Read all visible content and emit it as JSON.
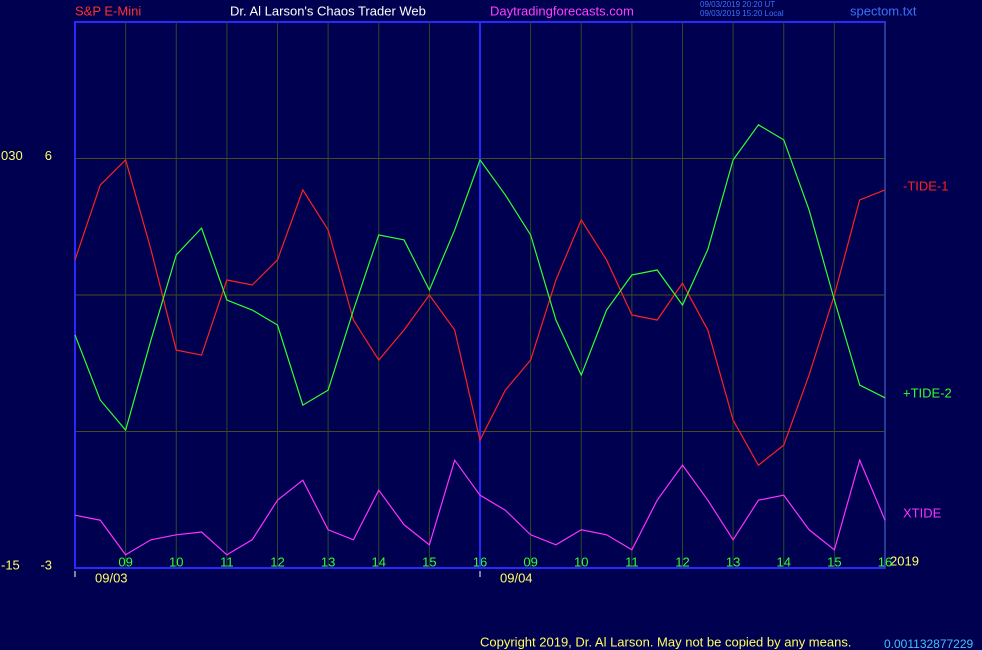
{
  "chart_data": {
    "type": "line",
    "header": [
      "S&P E-Mini",
      "Dr. Al Larson's Chaos Trader Web",
      "Daytradingforecasts.com"
    ],
    "timestamps": [
      "09/03/2019 20:20 UT",
      "09/03/2019 15:20 Local"
    ],
    "file_label": "spectom.txt",
    "year_label": "2019",
    "copyright": "Copyright 2019, Dr. Al Larson. May not be copied by any means.",
    "readout": "0.001132877229",
    "xlim": [
      0,
      16
    ],
    "xticks": [
      {
        "value": 1,
        "label": "09"
      },
      {
        "value": 2,
        "label": "10"
      },
      {
        "value": 3,
        "label": "11"
      },
      {
        "value": 4,
        "label": "12"
      },
      {
        "value": 5,
        "label": "13"
      },
      {
        "value": 6,
        "label": "14"
      },
      {
        "value": 7,
        "label": "15"
      },
      {
        "value": 8,
        "label": "16"
      },
      {
        "value": 9,
        "label": "09"
      },
      {
        "value": 10,
        "label": "10"
      },
      {
        "value": 11,
        "label": "11"
      },
      {
        "value": 12,
        "label": "12"
      },
      {
        "value": 13,
        "label": "13"
      },
      {
        "value": 14,
        "label": "14"
      },
      {
        "value": 15,
        "label": "15"
      },
      {
        "value": 16,
        "label": "16"
      }
    ],
    "date_ticks": [
      {
        "value": 0,
        "label": "09/03"
      },
      {
        "value": 8,
        "label": "09/04"
      }
    ],
    "ylim": [
      -3,
      9
    ],
    "yticks": [
      -3,
      6
    ],
    "gridlines": [
      0,
      3,
      6
    ],
    "y2lim": [
      -15,
      45
    ],
    "y2ticks": [
      -15,
      {
        "value": 30,
        "label": "030"
      }
    ],
    "grid": true,
    "x": [
      0,
      0.5,
      1,
      1.5,
      2,
      2.5,
      3,
      3.5,
      4,
      4.5,
      5,
      5.5,
      6,
      6.5,
      7,
      7.5,
      8,
      8.5,
      9,
      9.5,
      10,
      10.5,
      11,
      11.5,
      12,
      12.5,
      13,
      13.5,
      14,
      14.5,
      15,
      15.5,
      16
    ],
    "series": [
      {
        "name": "-TIDE-1",
        "color": "#ff2020",
        "values": [
          3.77,
          5.42,
          5.97,
          4.0,
          1.79,
          1.68,
          3.33,
          3.22,
          3.77,
          5.31,
          4.43,
          2.45,
          1.57,
          2.23,
          3.0,
          2.23,
          -0.19,
          0.91,
          1.57,
          3.33,
          4.65,
          3.77,
          2.56,
          2.45,
          3.26,
          2.23,
          0.25,
          -0.74,
          -0.3,
          1.24,
          3.0,
          5.09,
          5.31
        ]
      },
      {
        "name": "+TIDE-2",
        "color": "#30ff30",
        "values": [
          2.12,
          0.69,
          0.03,
          2.01,
          3.88,
          4.47,
          2.89,
          2.67,
          2.34,
          0.58,
          0.91,
          2.67,
          4.32,
          4.21,
          3.11,
          4.43,
          5.97,
          5.2,
          4.32,
          2.45,
          1.24,
          2.67,
          3.44,
          3.55,
          2.78,
          4.0,
          5.97,
          6.74,
          6.41,
          4.87,
          2.89,
          1.02,
          0.74
        ]
      },
      {
        "name": "XTIDE",
        "color": "#ff30ff",
        "values": [
          -1.84,
          -1.95,
          -2.71,
          -2.38,
          -2.27,
          -2.21,
          -2.71,
          -2.38,
          -1.51,
          -1.07,
          -2.16,
          -2.38,
          -1.29,
          -2.05,
          -2.49,
          -0.63,
          -1.4,
          -1.73,
          -2.27,
          -2.49,
          -2.16,
          -2.27,
          -2.6,
          -1.51,
          -0.74,
          -1.51,
          -2.38,
          -1.51,
          -1.4,
          -2.16,
          -2.6,
          -0.63,
          -1.95
        ]
      }
    ]
  }
}
